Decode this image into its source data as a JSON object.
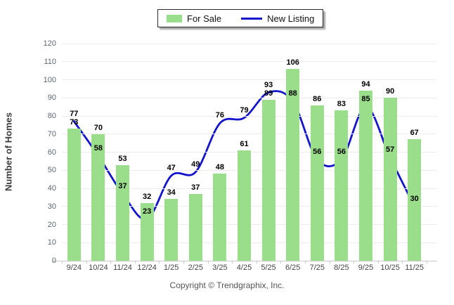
{
  "legend": {
    "for_sale_label": "For Sale",
    "new_listing_label": "New Listing"
  },
  "footer": {
    "copyright": "Copyright © Trendgraphix, Inc."
  },
  "chart_data": {
    "type": "bar",
    "subtype": "bar-with-line-overlay",
    "categories": [
      "9/24",
      "10/24",
      "11/24",
      "12/24",
      "1/25",
      "2/25",
      "3/25",
      "4/25",
      "5/25",
      "6/25",
      "7/25",
      "8/25",
      "9/25",
      "10/25",
      "11/25"
    ],
    "series": [
      {
        "name": "For Sale",
        "type": "bar",
        "color": "#9ade8b",
        "values": [
          73,
          70,
          53,
          32,
          34,
          37,
          48,
          61,
          89,
          106,
          86,
          83,
          94,
          90,
          67
        ]
      },
      {
        "name": "New Listing",
        "type": "line",
        "color": "#1414cc",
        "values": [
          77,
          58,
          37,
          23,
          47,
          49,
          76,
          79,
          93,
          88,
          56,
          56,
          85,
          57,
          30
        ]
      }
    ],
    "title": "",
    "xlabel": "",
    "ylabel": "Number of Homes",
    "ylim": [
      0,
      120
    ],
    "yticks": [
      0,
      10,
      20,
      30,
      40,
      50,
      60,
      70,
      80,
      90,
      100,
      110,
      120
    ],
    "grid": true,
    "legend_position": "top-center",
    "data_labels": true
  },
  "colors": {
    "bar": "#9ade8b",
    "line": "#1414cc",
    "grid": "#ececec",
    "axis": "#c9c9c9",
    "y_tick_label": "#5d6771",
    "x_tick_label": "#454545",
    "data_label": "#000000",
    "copyright": "#555555"
  }
}
